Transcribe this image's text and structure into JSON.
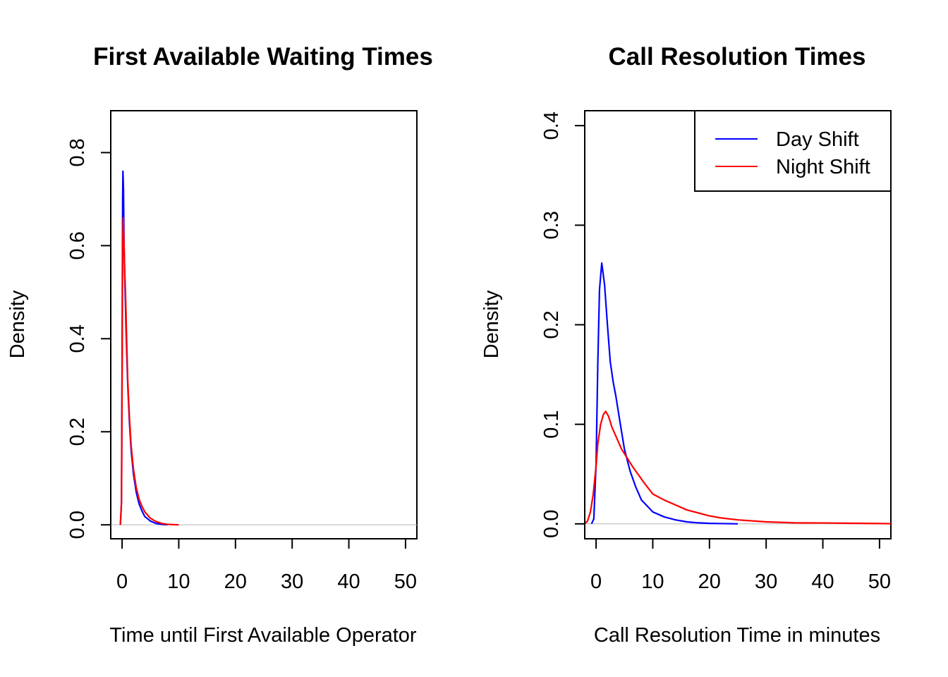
{
  "chart_data": [
    {
      "type": "line",
      "title": "First Available Waiting Times",
      "xlabel": "Time until First Available Operator",
      "ylabel": "Density",
      "xlim": [
        -2,
        52
      ],
      "ylim": [
        -0.03,
        0.89
      ],
      "xticks": [
        0,
        10,
        20,
        30,
        40,
        50
      ],
      "xtick_labels": [
        "0",
        "10",
        "20",
        "30",
        "40",
        "50"
      ],
      "yticks": [
        0.0,
        0.2,
        0.4,
        0.6,
        0.8
      ],
      "ytick_labels": [
        "0.0",
        "0.2",
        "0.4",
        "0.6",
        "0.8"
      ],
      "baseline": 0,
      "series": [
        {
          "color": "#0000ff",
          "x": [
            -0.3,
            -0.1,
            0.0,
            0.1,
            0.15,
            0.25,
            0.35,
            0.5,
            0.7,
            1.0,
            1.3,
            1.6,
            2.0,
            2.5,
            3.0,
            3.5,
            4.0,
            5.0,
            6.0,
            7.0,
            8.0
          ],
          "y": [
            0.0,
            0.05,
            0.35,
            0.7,
            0.76,
            0.72,
            0.6,
            0.52,
            0.42,
            0.3,
            0.22,
            0.16,
            0.11,
            0.07,
            0.045,
            0.03,
            0.018,
            0.008,
            0.003,
            0.001,
            0.0
          ]
        },
        {
          "color": "#ff0000",
          "x": [
            -0.3,
            -0.1,
            0.0,
            0.1,
            0.2,
            0.3,
            0.45,
            0.6,
            0.8,
            1.0,
            1.3,
            1.6,
            2.0,
            2.5,
            3.0,
            3.5,
            4.0,
            5.0,
            6.0,
            7.0,
            8.0,
            9.0,
            10.0
          ],
          "y": [
            0.0,
            0.05,
            0.3,
            0.6,
            0.66,
            0.62,
            0.55,
            0.5,
            0.4,
            0.31,
            0.23,
            0.17,
            0.12,
            0.08,
            0.055,
            0.04,
            0.028,
            0.014,
            0.007,
            0.003,
            0.001,
            0.0005,
            0.0
          ]
        }
      ]
    },
    {
      "type": "line",
      "title": "Call Resolution Times",
      "xlabel": "Call Resolution Time in minutes",
      "ylabel": "Density",
      "xlim": [
        -2,
        52
      ],
      "ylim": [
        -0.015,
        0.415
      ],
      "xticks": [
        0,
        10,
        20,
        30,
        40,
        50
      ],
      "xtick_labels": [
        "0",
        "10",
        "20",
        "30",
        "40",
        "50"
      ],
      "yticks": [
        0.0,
        0.1,
        0.2,
        0.3,
        0.4
      ],
      "ytick_labels": [
        "0.0",
        "0.1",
        "0.2",
        "0.3",
        "0.4"
      ],
      "baseline": 0,
      "legend": {
        "position": "top-right",
        "entries": [
          {
            "label": "Day Shift",
            "color": "#0000ff"
          },
          {
            "label": "Night Shift",
            "color": "#ff0000"
          }
        ]
      },
      "series": [
        {
          "name": "Day Shift",
          "color": "#0000ff",
          "x": [
            -0.8,
            -0.4,
            0.0,
            0.3,
            0.6,
            1.0,
            1.5,
            2.0,
            2.5,
            3.0,
            3.5,
            4.0,
            5.0,
            6.0,
            7.0,
            8.0,
            9.0,
            10.0,
            12.0,
            14.0,
            16.0,
            18.0,
            20.0,
            25.0
          ],
          "y": [
            0.0,
            0.005,
            0.06,
            0.16,
            0.235,
            0.262,
            0.24,
            0.2,
            0.163,
            0.143,
            0.128,
            0.11,
            0.075,
            0.053,
            0.037,
            0.024,
            0.018,
            0.012,
            0.007,
            0.004,
            0.002,
            0.001,
            0.0005,
            0.0
          ]
        },
        {
          "name": "Night Shift",
          "color": "#ff0000",
          "x": [
            -2.0,
            -1.5,
            -1.0,
            -0.5,
            0.0,
            0.3,
            0.8,
            1.3,
            1.7,
            2.2,
            2.8,
            3.5,
            4.5,
            5.5,
            6.5,
            7.5,
            8.5,
            10.0,
            12.0,
            14.0,
            16.0,
            18.0,
            20.0,
            22.0,
            25.0,
            30.0,
            35.0,
            40.0,
            45.0,
            50.0,
            52.0
          ],
          "y": [
            0.0,
            0.003,
            0.012,
            0.03,
            0.058,
            0.08,
            0.1,
            0.11,
            0.113,
            0.108,
            0.097,
            0.088,
            0.075,
            0.066,
            0.057,
            0.049,
            0.041,
            0.03,
            0.024,
            0.019,
            0.014,
            0.011,
            0.008,
            0.006,
            0.004,
            0.002,
            0.001,
            0.0009,
            0.0006,
            0.0003,
            0.0002
          ]
        }
      ]
    }
  ]
}
